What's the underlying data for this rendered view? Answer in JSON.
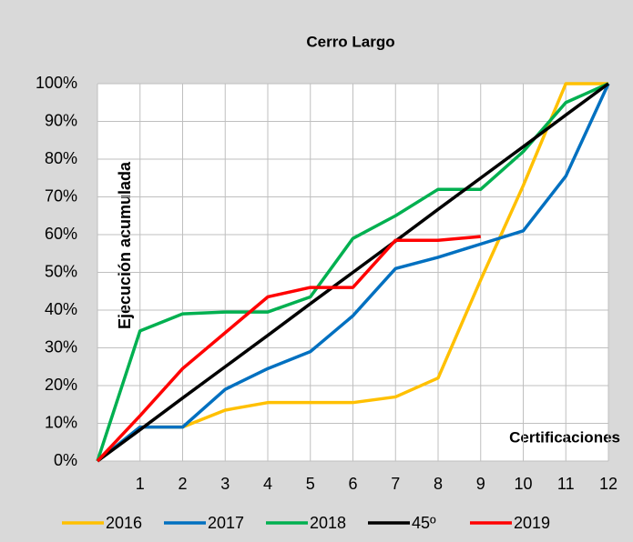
{
  "chart_data": {
    "type": "line",
    "title": "Cerro Largo",
    "ylabel": "Ejecución acumulada",
    "xlabel": "Certificaciones",
    "x": [
      0,
      1,
      2,
      3,
      4,
      5,
      6,
      7,
      8,
      9,
      10,
      11,
      12
    ],
    "xlim": [
      0,
      12
    ],
    "xticks": [
      1,
      2,
      3,
      4,
      5,
      6,
      7,
      8,
      9,
      10,
      11,
      12
    ],
    "ylim": [
      0,
      100
    ],
    "yticks": [
      {
        "value": 0,
        "label": "0%"
      },
      {
        "value": 10,
        "label": "10%"
      },
      {
        "value": 20,
        "label": "20%"
      },
      {
        "value": 30,
        "label": "30%"
      },
      {
        "value": 40,
        "label": "40%"
      },
      {
        "value": 50,
        "label": "50%"
      },
      {
        "value": 60,
        "label": "60%"
      },
      {
        "value": 70,
        "label": "70%"
      },
      {
        "value": 80,
        "label": "80%"
      },
      {
        "value": 90,
        "label": "90%"
      },
      {
        "value": 100,
        "label": "100%"
      }
    ],
    "grid": true,
    "legend": "bottom",
    "series": [
      {
        "name": "2016",
        "color": "#ffc000",
        "values": [
          0,
          9,
          9,
          13.5,
          15.5,
          15.5,
          15.5,
          17,
          22,
          48,
          73,
          100,
          100
        ]
      },
      {
        "name": "2017",
        "color": "#0070c0",
        "values": [
          0,
          9,
          9,
          19,
          24.5,
          29,
          38.5,
          51,
          54,
          57.5,
          61,
          75.5,
          100
        ]
      },
      {
        "name": "2018",
        "color": "#00b050",
        "values": [
          0,
          34.5,
          39,
          39.5,
          39.5,
          43.5,
          59,
          65,
          72,
          72,
          82,
          95,
          100
        ]
      },
      {
        "name": "45º",
        "color": "#000000",
        "values": [
          0,
          8.3,
          16.7,
          25,
          33.3,
          41.7,
          50,
          58.3,
          66.7,
          75,
          83.3,
          91.7,
          100
        ]
      },
      {
        "name": "2019",
        "color": "#ff0000",
        "values": [
          0,
          12,
          24.5,
          34,
          43.5,
          46,
          46,
          58.5,
          58.5,
          59.5,
          null,
          null,
          null
        ]
      }
    ]
  }
}
